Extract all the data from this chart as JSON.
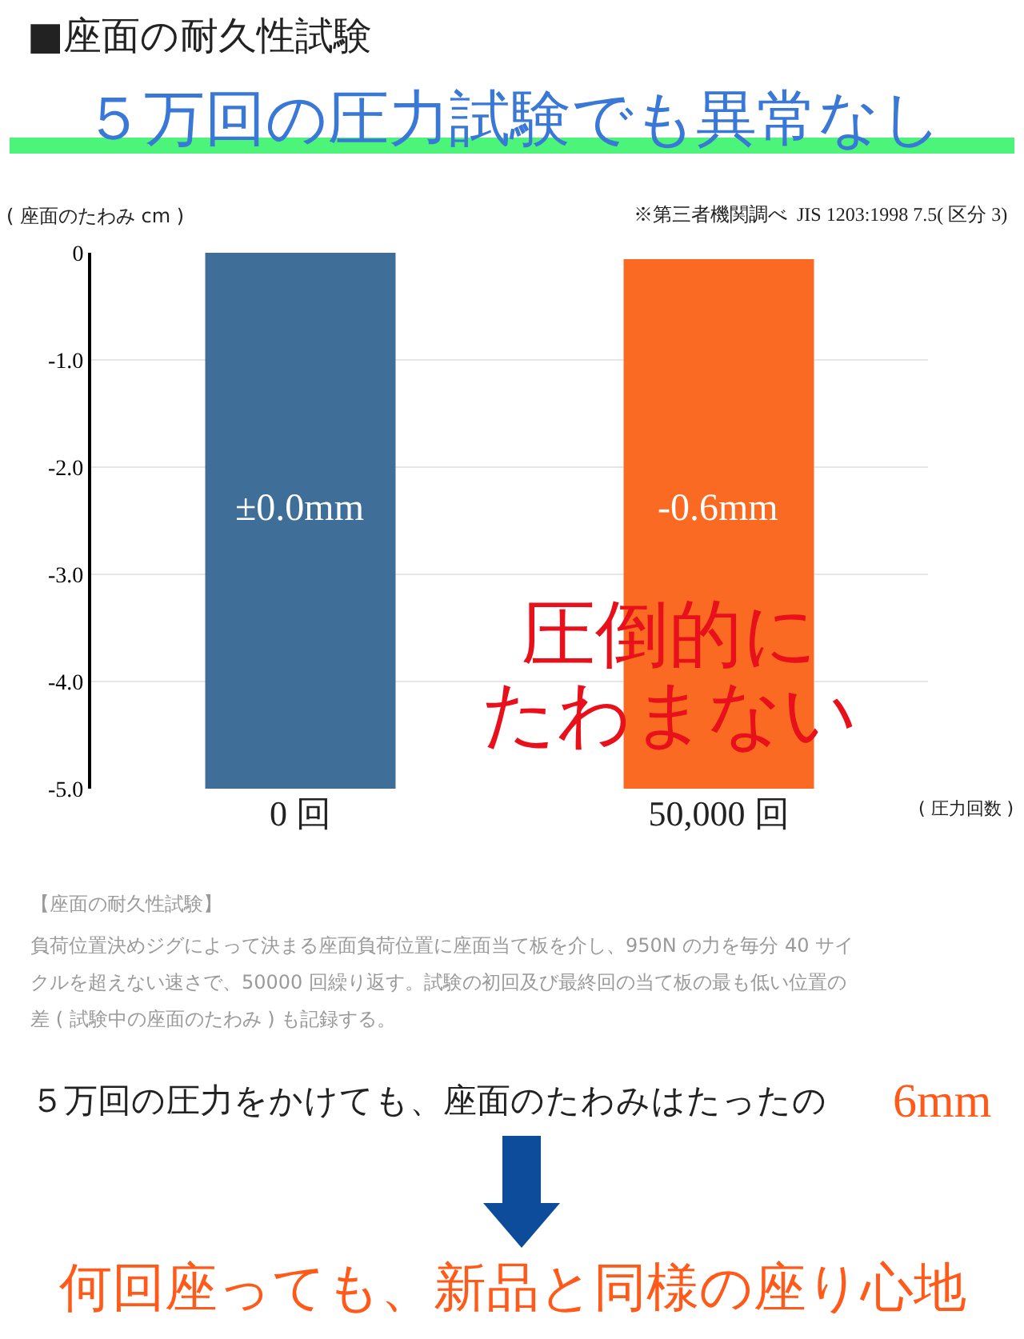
{
  "chart_data": {
    "type": "bar",
    "title": "■座面の耐久性試験",
    "subtitle": "５万回の圧力試験でも異常なし",
    "ylabel": "( 座面のたわみ cm )",
    "xlabel": "( 圧力回数 )",
    "categories": [
      "0 回",
      "50,000 回"
    ],
    "values": [
      -5.0,
      -4.94
    ],
    "base": [
      0,
      -0.06
    ],
    "colors": [
      "#3f6f98",
      "#fb6a22"
    ],
    "ylim": [
      -5.0,
      0
    ],
    "yticks": [
      0,
      {
        "value": -1,
        "label": "-1.0"
      },
      {
        "value": -2,
        "label": "-2.0"
      },
      {
        "value": -3,
        "label": "-3.0"
      },
      {
        "value": -4,
        "label": "-4.0"
      },
      {
        "value": -5,
        "label": "-5.0"
      }
    ],
    "grid": "y",
    "annotations": [
      "※第三者機関調べ  JIS 1203:1998 7.5( 区分 3)",
      "圧倒的に",
      "たわまない",
      "【座面の耐久性試験】",
      "負荷位置決めジグによって決まる座面負荷位置に座面当て板を介し、950N の力を毎分 40 サイ",
      "クルを超えない速さで、50000 回繰り返す。試験の初回及び最終回の当て板の最も低い位置の",
      "差 ( 試験中の座面のたわみ ) も記録する。",
      "５万回の圧力をかけても、座面のたわみはたったの",
      "6mm",
      "何回座っても、新品と同様の座り心地",
      "±0.0mm",
      "-0.6mm"
    ]
  }
}
